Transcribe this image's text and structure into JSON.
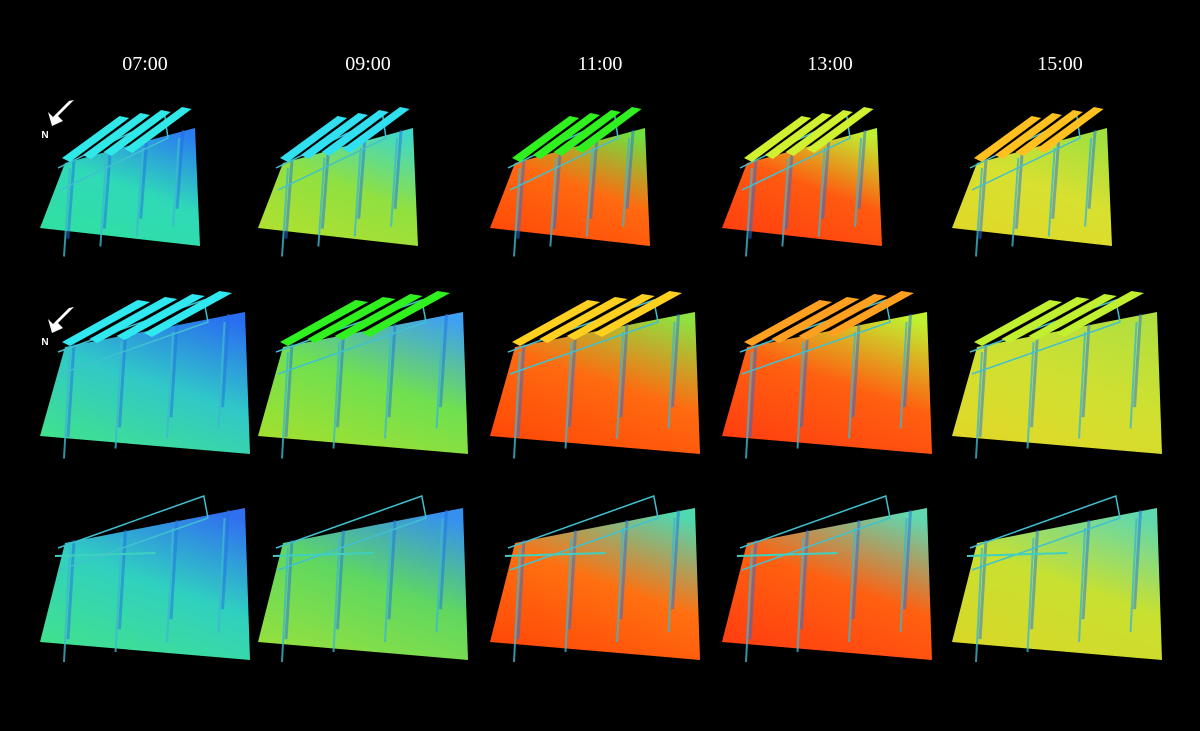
{
  "columns": [
    "07:00",
    "09:00",
    "11:00",
    "13:00",
    "15:00"
  ],
  "north_labels": [
    "N",
    "N"
  ]
}
